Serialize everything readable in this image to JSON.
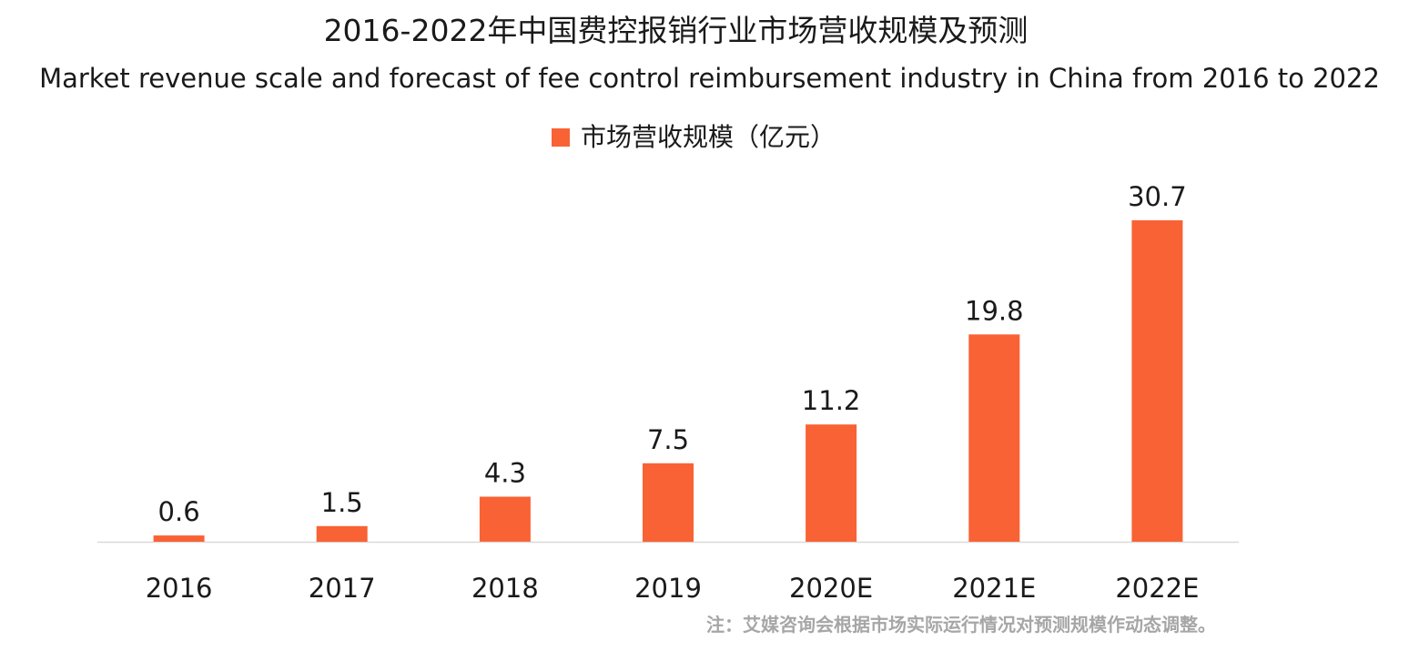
{
  "chart_data": {
    "type": "bar",
    "title": "2016-2022年中国费控报销行业市场营收规模及预测",
    "subtitle": "Market revenue scale and forecast of fee control reimbursement industry in China from 2016 to 2022",
    "categories": [
      "2016",
      "2017",
      "2018",
      "2019",
      "2020E",
      "2021E",
      "2022E"
    ],
    "series": [
      {
        "name": "市场营收规模（亿元）",
        "values": [
          0.6,
          1.5,
          4.3,
          7.5,
          11.2,
          19.8,
          30.7
        ],
        "labels": [
          "0.6",
          "1.5",
          "4.3",
          "7.5",
          "11.2",
          "19.8",
          "30.7"
        ]
      }
    ],
    "xlabel": "",
    "ylabel": "",
    "ylim": [
      0,
      32
    ],
    "grid": false,
    "legend": "top-center",
    "colors": {
      "bar": "#F96234",
      "axis": "#d9d9d9",
      "text": "#1a1a1a",
      "footnote": "#a6a6a6"
    }
  },
  "footnote": "注：艾媒咨询会根据市场实际运行情况对预测规模作动态调整。"
}
